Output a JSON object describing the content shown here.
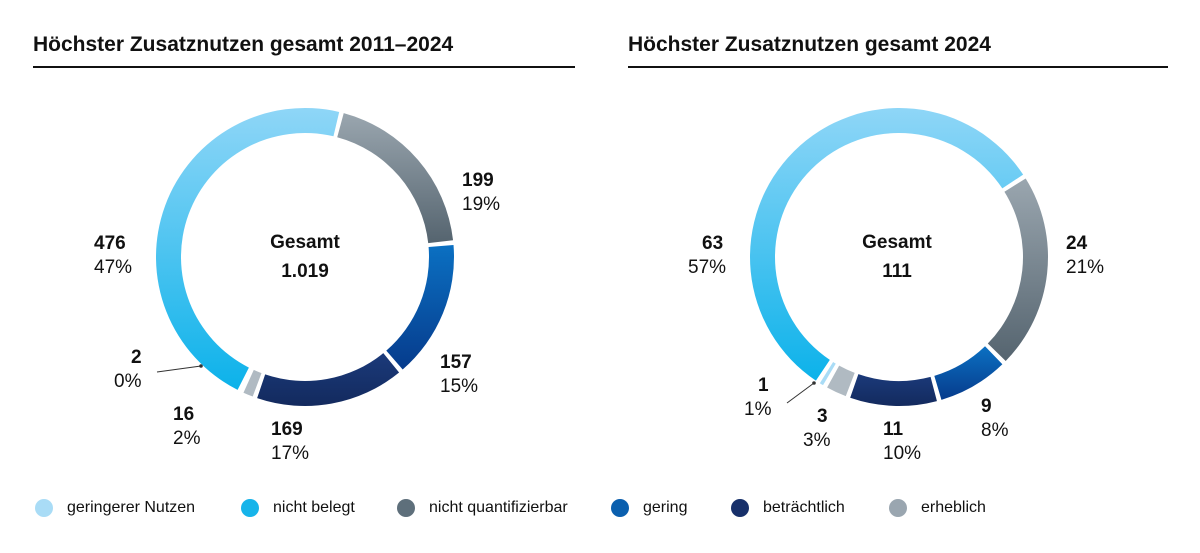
{
  "legend": [
    {
      "label": "geringerer Nutzen",
      "color": "#a9dcf6"
    },
    {
      "label": "nicht belegt",
      "color": "#16b4ea"
    },
    {
      "label": "nicht quantifizierbar",
      "color": "#5e6f7b"
    },
    {
      "label": "gering",
      "color": "#0a5fae"
    },
    {
      "label": "beträchtlich",
      "color": "#17306a"
    },
    {
      "label": "erheblich",
      "color": "#9aa6b0"
    }
  ],
  "chart_data": [
    {
      "type": "pie",
      "title": "Höchster Zusatznutzen gesamt 2011–2024",
      "center_label": "Gesamt",
      "center_value": "1.019",
      "slices": [
        {
          "category": "nicht belegt",
          "count": 476,
          "count_label": "476",
          "percent_label": "47%",
          "color_top": "#8fd6f7",
          "color_bottom": "#0cb2ea"
        },
        {
          "category": "nicht quantifizierbar",
          "count": 199,
          "count_label": "199",
          "percent_label": "19%",
          "color_top": "#9aa6af",
          "color_bottom": "#55646f"
        },
        {
          "category": "gering",
          "count": 157,
          "count_label": "157",
          "percent_label": "15%",
          "color_top": "#0b70c2",
          "color_bottom": "#063b8c"
        },
        {
          "category": "beträchtlich",
          "count": 169,
          "count_label": "169",
          "percent_label": "17%",
          "color_top": "#1b3a7a",
          "color_bottom": "#132a5e"
        },
        {
          "category": "erheblich",
          "count": 16,
          "count_label": "16",
          "percent_label": "2%",
          "color_top": "#b0bac2",
          "color_bottom": "#b0bac2"
        },
        {
          "category": "geringerer Nutzen",
          "count": 2,
          "count_label": "2",
          "percent_label": "0%",
          "color_top": "#a9dcf6",
          "color_bottom": "#a9dcf6"
        }
      ]
    },
    {
      "type": "pie",
      "title": "Höchster Zusatznutzen gesamt 2024",
      "center_label": "Gesamt",
      "center_value": "111",
      "slices": [
        {
          "category": "nicht belegt",
          "count": 63,
          "count_label": "63",
          "percent_label": "57%",
          "color_top": "#8fd6f7",
          "color_bottom": "#0cb2ea"
        },
        {
          "category": "nicht quantifizierbar",
          "count": 24,
          "count_label": "24",
          "percent_label": "21%",
          "color_top": "#9aa6af",
          "color_bottom": "#55646f"
        },
        {
          "category": "gering",
          "count": 9,
          "count_label": "9",
          "percent_label": "8%",
          "color_top": "#0b70c2",
          "color_bottom": "#063b8c"
        },
        {
          "category": "beträchtlich",
          "count": 11,
          "count_label": "11",
          "percent_label": "10%",
          "color_top": "#1b3a7a",
          "color_bottom": "#132a5e"
        },
        {
          "category": "erheblich",
          "count": 3,
          "count_label": "3",
          "percent_label": "3%",
          "color_top": "#b0bac2",
          "color_bottom": "#b0bac2"
        },
        {
          "category": "geringerer Nutzen",
          "count": 1,
          "count_label": "1",
          "percent_label": "1%",
          "color_top": "#a9dcf6",
          "color_bottom": "#a9dcf6"
        }
      ]
    }
  ]
}
